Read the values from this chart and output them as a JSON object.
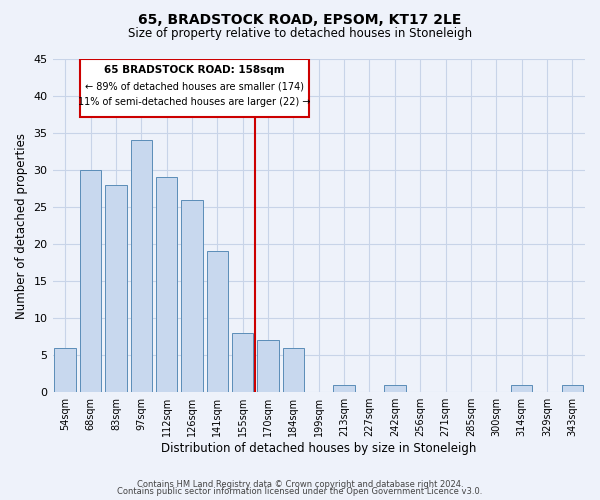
{
  "title": "65, BRADSTOCK ROAD, EPSOM, KT17 2LE",
  "subtitle": "Size of property relative to detached houses in Stoneleigh",
  "xlabel": "Distribution of detached houses by size in Stoneleigh",
  "ylabel": "Number of detached properties",
  "bar_labels": [
    "54sqm",
    "68sqm",
    "83sqm",
    "97sqm",
    "112sqm",
    "126sqm",
    "141sqm",
    "155sqm",
    "170sqm",
    "184sqm",
    "199sqm",
    "213sqm",
    "227sqm",
    "242sqm",
    "256sqm",
    "271sqm",
    "285sqm",
    "300sqm",
    "314sqm",
    "329sqm",
    "343sqm"
  ],
  "bar_values": [
    6,
    30,
    28,
    34,
    29,
    26,
    19,
    8,
    7,
    6,
    0,
    1,
    0,
    1,
    0,
    0,
    0,
    0,
    1,
    0,
    1
  ],
  "bar_color": "#c8d8ee",
  "bar_edge_color": "#5b8db8",
  "vline_x": 7.5,
  "vline_color": "#cc0000",
  "annotation_line1": "65 BRADSTOCK ROAD: 158sqm",
  "annotation_line2": "← 89% of detached houses are smaller (174)",
  "annotation_line3": "11% of semi-detached houses are larger (22) →",
  "ylim": [
    0,
    45
  ],
  "yticks": [
    0,
    5,
    10,
    15,
    20,
    25,
    30,
    35,
    40,
    45
  ],
  "background_color": "#eef2fa",
  "grid_color": "#c8d4e8",
  "footer_line1": "Contains HM Land Registry data © Crown copyright and database right 2024.",
  "footer_line2": "Contains public sector information licensed under the Open Government Licence v3.0."
}
